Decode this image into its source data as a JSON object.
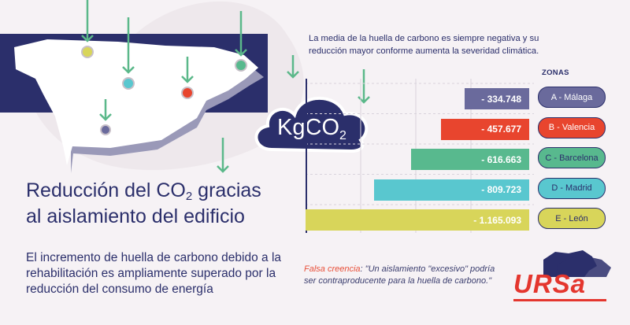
{
  "headline": {
    "line1_pre": "Reducción del CO",
    "line1_sub": "2",
    "line1_post": " gracias",
    "line2": "al aislamiento del edificio"
  },
  "body": "El incremento de huella de carbono debido a la rehabilitación es ampliamente superado por la reducción del consumo de energía",
  "top_note": "La media de la huella de carbono es siempre negativa y su reducción mayor conforme aumenta la severidad climática.",
  "cloud": {
    "main": "KgCO",
    "sub": "2"
  },
  "myth": {
    "label": "Falsa creencia",
    "text": ": \"Un aislamiento \"excesivo\" podría ser contraproducente para la huella de carbono.\""
  },
  "logo": "URSa",
  "colors": {
    "navy": "#2b2f6b",
    "green_arrow": "#5bb88a",
    "bg": "#f6f2f5"
  },
  "chart_data": {
    "type": "bar",
    "orientation": "horizontal",
    "legend_title": "ZONAS",
    "categories": [
      "A - Málaga",
      "B - Valencia",
      "C - Barcelona",
      "D - Madrid",
      "E - León"
    ],
    "values": [
      -334.748,
      -457.677,
      -616.663,
      -809.723,
      -1165.093
    ],
    "value_labels": [
      "- 334.748",
      "- 457.677",
      "- 616.663",
      "- 809.723",
      "- 1.165.093"
    ],
    "colors": [
      "#6a6a9c",
      "#e8452e",
      "#58b98e",
      "#59c7cf",
      "#d8d55a"
    ],
    "grid": true
  }
}
